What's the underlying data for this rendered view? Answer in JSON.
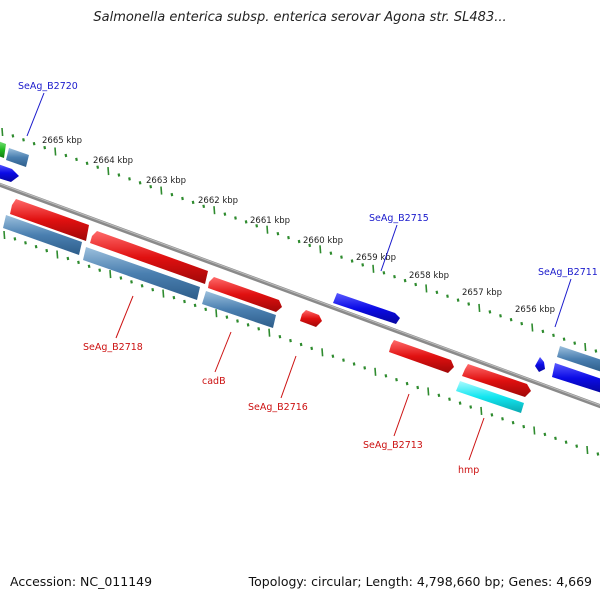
{
  "title": "Salmonella enterica subsp. enterica serovar Agona str. SL483...",
  "footer": {
    "accession": "Accession: NC_011149",
    "summary": "Topology: circular; Length: 4,798,660 bp; Genes: 4,669"
  },
  "colors": {
    "backbone": "#8a8a8a",
    "tick": "#2e8b2e",
    "forward_label": "#1a1acc",
    "reverse_label": "#cc1111",
    "blue_feature": "#0b0be6",
    "steel_feature": "#4a7fb0",
    "red_feature": "#e01010",
    "cyan_feature": "#12e6f0",
    "green_feature": "#22bb22"
  },
  "tick_labels": [
    "2665 kbp",
    "2664 kbp",
    "2663 kbp",
    "2662 kbp",
    "2661 kbp",
    "2660 kbp",
    "2659 kbp",
    "2658 kbp",
    "2657 kbp",
    "2656 kbp"
  ],
  "gene_labels": [
    {
      "text": "SeAg_B2720",
      "strand": "forward"
    },
    {
      "text": "SeAg_B2715",
      "strand": "forward"
    },
    {
      "text": "SeAg_B2711",
      "strand": "forward"
    },
    {
      "text": "SeAg_B2718",
      "strand": "reverse"
    },
    {
      "text": "cadB",
      "strand": "reverse"
    },
    {
      "text": "SeAg_B2716",
      "strand": "reverse"
    },
    {
      "text": "SeAg_B2713",
      "strand": "reverse"
    },
    {
      "text": "hmp",
      "strand": "reverse"
    }
  ]
}
